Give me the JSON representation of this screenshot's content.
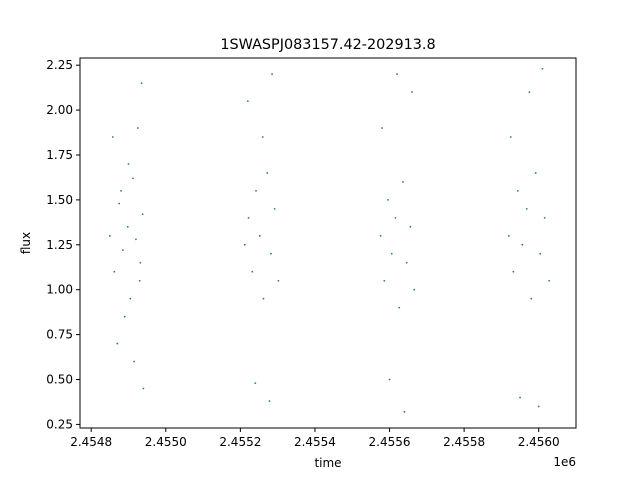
{
  "chart_data": {
    "type": "scatter",
    "title": "1SWASPJ083157.42-202913.8",
    "xlabel": "time",
    "ylabel": "flux",
    "x_offset_label": "1e6",
    "xlim": [
      2454770,
      2456100
    ],
    "ylim": [
      0.23,
      2.29
    ],
    "x_ticks": [
      2454800,
      2455000,
      2455200,
      2455400,
      2455600,
      2455800,
      2456000
    ],
    "x_tick_labels": [
      "2.4548",
      "2.4550",
      "2.4552",
      "2.4554",
      "2.4556",
      "2.4558",
      "2.4560"
    ],
    "y_ticks": [
      0.25,
      0.5,
      0.75,
      1.0,
      1.25,
      1.5,
      1.75,
      2.0,
      2.25
    ],
    "y_tick_labels": [
      "0.25",
      "0.50",
      "0.75",
      "1.00",
      "1.25",
      "1.50",
      "1.75",
      "2.00",
      "2.25"
    ],
    "grid": false,
    "marker_color": "#1f77b4",
    "marker_size": "small dot",
    "series": [
      {
        "points": [
          [
            2454850,
            1.3
          ],
          [
            2454862,
            1.1
          ],
          [
            2454875,
            1.48
          ],
          [
            2454885,
            1.22
          ],
          [
            2454898,
            1.35
          ],
          [
            2454905,
            0.95
          ],
          [
            2454912,
            1.62
          ],
          [
            2454920,
            1.28
          ],
          [
            2454930,
            1.05
          ],
          [
            2454938,
            1.42
          ],
          [
            2454858,
            1.85
          ],
          [
            2454870,
            0.7
          ],
          [
            2454880,
            1.55
          ],
          [
            2454890,
            0.85
          ],
          [
            2454900,
            1.7
          ],
          [
            2454915,
            0.6
          ],
          [
            2454925,
            1.9
          ],
          [
            2454932,
            1.15
          ],
          [
            2454940,
            0.45
          ],
          [
            2454935,
            2.15
          ],
          [
            2455212,
            1.25
          ],
          [
            2455222,
            1.4
          ],
          [
            2455232,
            1.1
          ],
          [
            2455242,
            1.55
          ],
          [
            2455252,
            1.3
          ],
          [
            2455262,
            0.95
          ],
          [
            2455272,
            1.65
          ],
          [
            2455282,
            1.2
          ],
          [
            2455292,
            1.45
          ],
          [
            2455302,
            1.05
          ],
          [
            2455220,
            2.05
          ],
          [
            2455240,
            0.48
          ],
          [
            2455260,
            1.85
          ],
          [
            2455278,
            0.38
          ],
          [
            2455285,
            2.2
          ],
          [
            2455576,
            1.3
          ],
          [
            2455586,
            1.05
          ],
          [
            2455596,
            1.5
          ],
          [
            2455606,
            1.2
          ],
          [
            2455616,
            1.4
          ],
          [
            2455626,
            0.9
          ],
          [
            2455636,
            1.6
          ],
          [
            2455646,
            1.15
          ],
          [
            2455656,
            1.35
          ],
          [
            2455666,
            1.0
          ],
          [
            2455580,
            1.9
          ],
          [
            2455600,
            0.5
          ],
          [
            2455620,
            2.2
          ],
          [
            2455640,
            0.32
          ],
          [
            2455660,
            2.1
          ],
          [
            2455920,
            1.3
          ],
          [
            2455932,
            1.1
          ],
          [
            2455944,
            1.55
          ],
          [
            2455956,
            1.25
          ],
          [
            2455968,
            1.45
          ],
          [
            2455980,
            0.95
          ],
          [
            2455992,
            1.65
          ],
          [
            2456004,
            1.2
          ],
          [
            2456016,
            1.4
          ],
          [
            2456028,
            1.05
          ],
          [
            2455925,
            1.85
          ],
          [
            2455950,
            0.4
          ],
          [
            2455975,
            2.1
          ],
          [
            2456000,
            0.35
          ],
          [
            2456010,
            2.23
          ]
        ]
      }
    ]
  }
}
